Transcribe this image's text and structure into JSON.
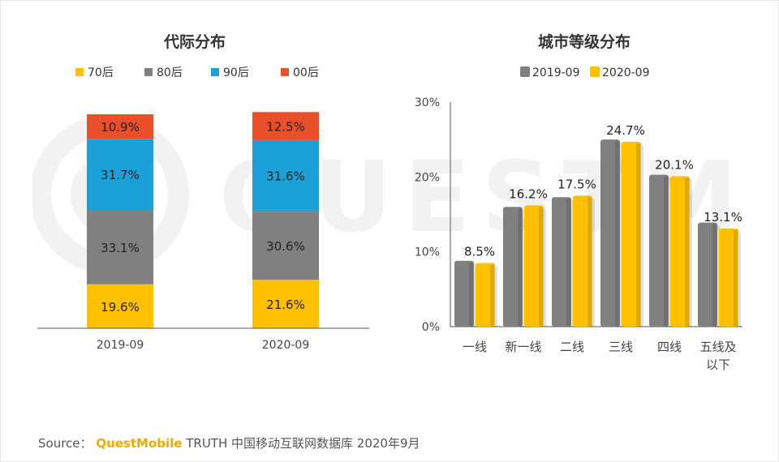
{
  "watermark": "QUESTMOBILE",
  "source": {
    "prefix": "Source：",
    "brand": "QuestMobile",
    "rest": "TRUTH 中国移动互联网数据库 2020年9月"
  },
  "colors": {
    "yellow": "#ffc000",
    "gray": "#7f7f7f",
    "blue": "#1aa1d8",
    "red": "#e9502a"
  },
  "chart_data": [
    {
      "type": "bar",
      "stacked": true,
      "title": "代际分布",
      "categories": [
        "2019-09",
        "2020-09"
      ],
      "series": [
        {
          "name": "70后",
          "color": "#ffc000",
          "values": [
            19.6,
            21.6
          ],
          "labels": [
            "19.6%",
            "21.6%"
          ]
        },
        {
          "name": "80后",
          "color": "#808080",
          "values": [
            33.1,
            30.6
          ],
          "labels": [
            "33.1%",
            "30.6%"
          ]
        },
        {
          "name": "90后",
          "color": "#1ba1d8",
          "values": [
            31.7,
            31.6
          ],
          "labels": [
            "31.7%",
            "31.6%"
          ]
        },
        {
          "name": "00后",
          "color": "#e9502a",
          "values": [
            10.9,
            12.5
          ],
          "labels": [
            "10.9%",
            "12.5%"
          ]
        }
      ],
      "legend_position": "top",
      "ylim": [
        0,
        100
      ]
    },
    {
      "type": "bar",
      "title": "城市等级分布",
      "categories": [
        "一线",
        "新一线",
        "二线",
        "三线",
        "四线",
        "五线及以下"
      ],
      "category_lines": [
        [
          "一线"
        ],
        [
          "新一线"
        ],
        [
          "二线"
        ],
        [
          "三线"
        ],
        [
          "四线"
        ],
        [
          "五线及",
          "以下"
        ]
      ],
      "series": [
        {
          "name": "2019-09",
          "color": "#808080",
          "values": [
            8.8,
            16.0,
            17.3,
            25.0,
            20.3,
            13.9
          ]
        },
        {
          "name": "2020-09",
          "color": "#ffc000",
          "values": [
            8.5,
            16.2,
            17.5,
            24.7,
            20.1,
            13.1
          ],
          "labels": [
            "8.5%",
            "16.2%",
            "17.5%",
            "24.7%",
            "20.1%",
            "13.1%"
          ]
        }
      ],
      "yticks": [
        "0%",
        "10%",
        "20%",
        "30%"
      ],
      "ylim": [
        0,
        30
      ],
      "legend_position": "top",
      "grid": false
    }
  ]
}
